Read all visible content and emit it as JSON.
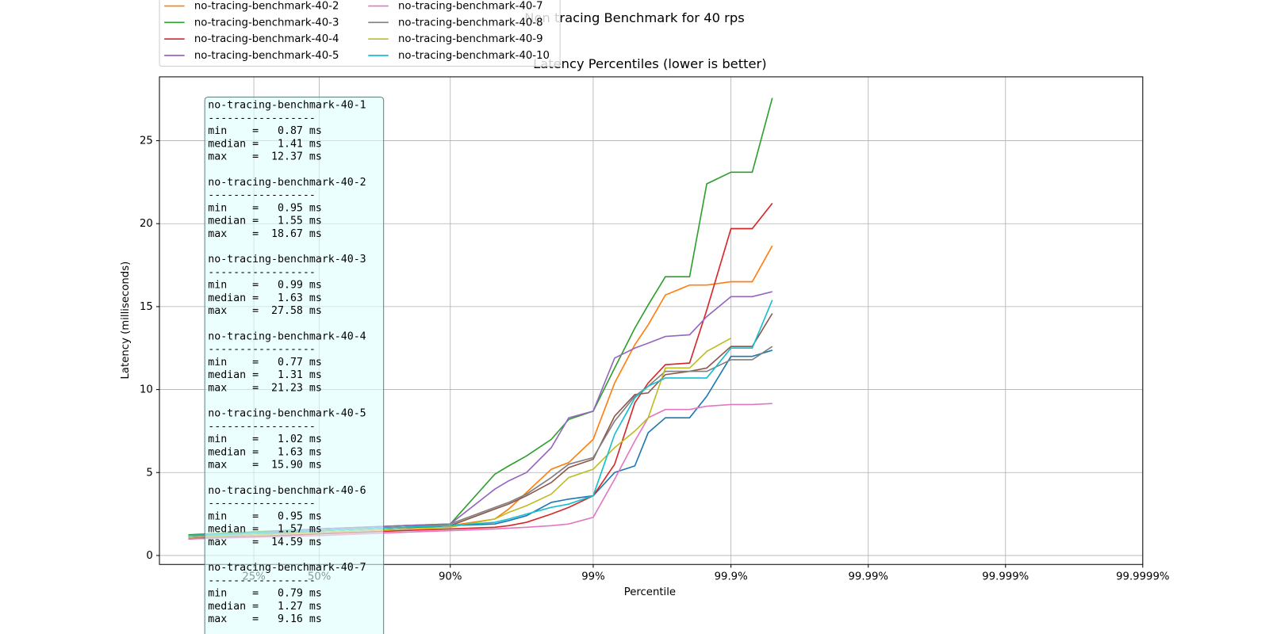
{
  "chart_data": {
    "type": "line",
    "suptitle": "Non tracing Benchmark for 40 rps",
    "title": "Latency Percentiles (lower is better)",
    "xlabel": "Percentile",
    "ylabel": "Latency (milliseconds)",
    "xscale": "logit",
    "xlim": [
      6.4,
      99.9999
    ],
    "xticks": [
      {
        "value": 25,
        "label": "25%"
      },
      {
        "value": 50,
        "label": "50%"
      },
      {
        "value": 90,
        "label": "90%"
      },
      {
        "value": 99,
        "label": "99%"
      },
      {
        "value": 99.9,
        "label": "99.9%"
      },
      {
        "value": 99.99,
        "label": "99.99%"
      },
      {
        "value": 99.999,
        "label": "99.999%"
      },
      {
        "value": 99.9999,
        "label": "99.9999%"
      }
    ],
    "ylim": [
      -0.54,
      28.85
    ],
    "yticks": [
      0,
      5,
      10,
      15,
      20,
      25
    ],
    "grid": true,
    "legend": "upper left",
    "x": [
      10,
      50,
      80,
      90,
      95,
      96,
      97,
      98,
      98.5,
      99,
      99.3,
      99.5,
      99.6,
      99.7,
      99.8,
      99.85,
      99.9,
      99.93,
      99.95
    ],
    "series": [
      {
        "name": "no-tracing-benchmark-40-1",
        "color": "#1f77b4",
        "values": [
          1.1,
          1.4,
          1.6,
          1.8,
          1.9,
          2.1,
          2.4,
          3.2,
          3.4,
          3.6,
          5.0,
          5.4,
          7.4,
          8.3,
          8.3,
          9.6,
          12.0,
          12.0,
          12.37
        ]
      },
      {
        "name": "no-tracing-benchmark-40-2",
        "color": "#ff7f0e",
        "values": [
          1.2,
          1.5,
          1.7,
          1.8,
          2.2,
          2.8,
          3.8,
          5.2,
          5.6,
          7.0,
          10.4,
          12.7,
          13.9,
          15.7,
          16.3,
          16.3,
          16.5,
          16.5,
          18.67
        ]
      },
      {
        "name": "no-tracing-benchmark-40-3",
        "color": "#2ca02c",
        "values": [
          1.25,
          1.6,
          1.8,
          1.9,
          4.9,
          5.4,
          6.0,
          7.0,
          8.2,
          8.7,
          11.3,
          13.7,
          15.1,
          16.8,
          16.8,
          22.4,
          23.1,
          23.1,
          27.58
        ]
      },
      {
        "name": "no-tracing-benchmark-40-4",
        "color": "#d62728",
        "values": [
          1.0,
          1.3,
          1.5,
          1.6,
          1.7,
          1.8,
          2.0,
          2.5,
          2.9,
          3.6,
          5.5,
          9.2,
          10.4,
          11.5,
          11.6,
          14.8,
          19.7,
          19.7,
          21.23
        ]
      },
      {
        "name": "no-tracing-benchmark-40-5",
        "color": "#9467bd",
        "values": [
          1.1,
          1.6,
          1.8,
          1.9,
          4.0,
          4.5,
          5.0,
          6.5,
          8.3,
          8.7,
          11.9,
          12.5,
          12.8,
          13.2,
          13.3,
          14.4,
          15.6,
          15.6,
          15.9
        ]
      },
      {
        "name": "no-tracing-benchmark-40-6",
        "color": "#8c564b",
        "values": [
          1.0,
          1.5,
          1.7,
          1.8,
          2.8,
          3.1,
          3.6,
          4.4,
          5.3,
          5.8,
          8.4,
          9.7,
          9.8,
          10.9,
          11.1,
          11.3,
          12.6,
          12.6,
          14.59
        ]
      },
      {
        "name": "no-tracing-benchmark-40-7",
        "color": "#e377c2",
        "values": [
          1.0,
          1.2,
          1.4,
          1.5,
          1.6,
          1.65,
          1.7,
          1.8,
          1.9,
          2.3,
          4.6,
          6.9,
          8.3,
          8.8,
          8.8,
          9.0,
          9.1,
          9.1,
          9.16
        ]
      },
      {
        "name": "no-tracing-benchmark-40-8",
        "color": "#7f7f7f",
        "values": [
          1.2,
          1.5,
          1.7,
          1.9,
          2.9,
          3.2,
          3.7,
          4.7,
          5.5,
          5.9,
          8.1,
          9.6,
          10.2,
          11.1,
          11.1,
          11.1,
          11.8,
          11.8,
          12.6
        ]
      },
      {
        "name": "no-tracing-benchmark-40-9",
        "color": "#bcbd22",
        "values": [
          1.1,
          1.4,
          1.6,
          1.7,
          2.2,
          2.6,
          3.0,
          3.7,
          4.7,
          5.2,
          6.5,
          7.5,
          8.3,
          11.3,
          11.3,
          12.3,
          13.1,
          null,
          null
        ]
      },
      {
        "name": "no-tracing-benchmark-40-10",
        "color": "#17becf",
        "values": [
          1.2,
          1.5,
          1.7,
          1.8,
          2.0,
          2.2,
          2.5,
          2.9,
          3.1,
          3.6,
          7.3,
          9.5,
          10.2,
          10.7,
          10.7,
          10.7,
          12.5,
          12.5,
          15.4
        ]
      }
    ],
    "stats_separator": "-----------------",
    "stats": [
      [
        "min    =   0.87 ms",
        "median =   1.41 ms",
        "max    =  12.37 ms"
      ],
      [
        "min    =   0.95 ms",
        "median =   1.55 ms",
        "max    =  18.67 ms"
      ],
      [
        "min    =   0.99 ms",
        "median =   1.63 ms",
        "max    =  27.58 ms"
      ],
      [
        "min    =   0.77 ms",
        "median =   1.31 ms",
        "max    =  21.23 ms"
      ],
      [
        "min    =   1.02 ms",
        "median =   1.63 ms",
        "max    =  15.90 ms"
      ],
      [
        "min    =   0.95 ms",
        "median =   1.57 ms",
        "max    =  14.59 ms"
      ],
      [
        "min    =   0.79 ms",
        "median =   1.27 ms",
        "max    =   9.16 ms"
      ]
    ]
  }
}
